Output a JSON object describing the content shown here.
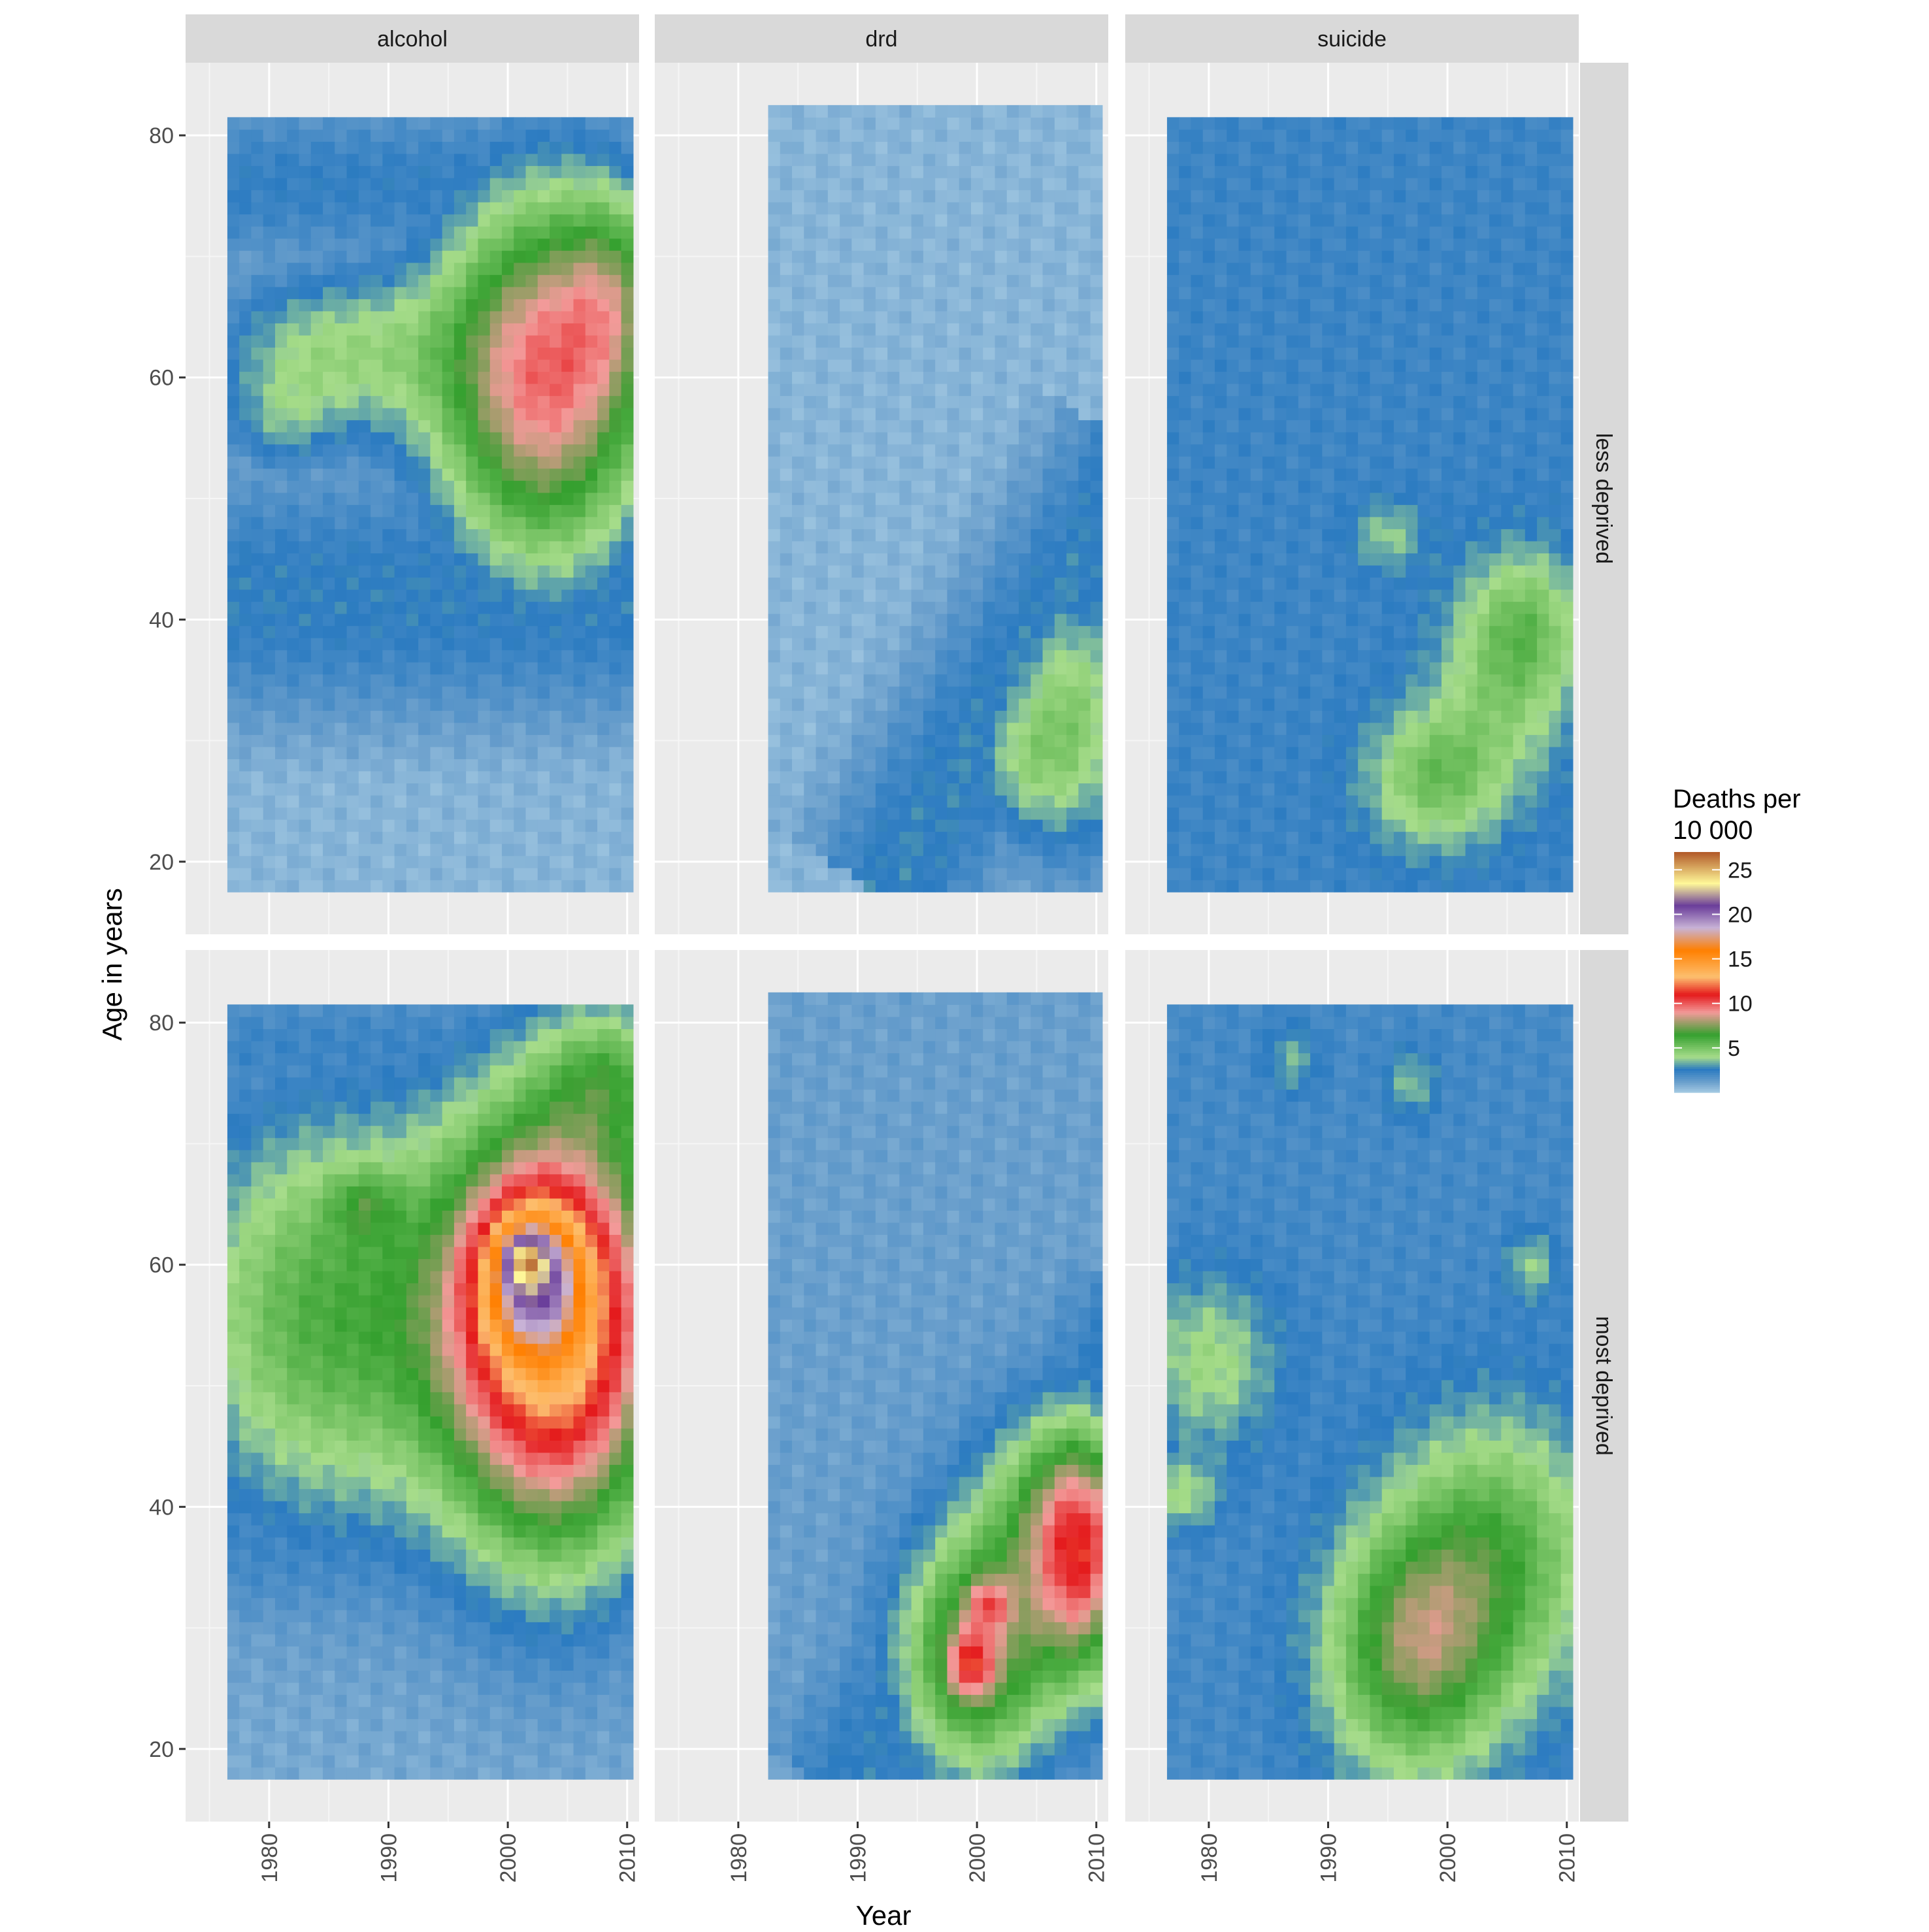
{
  "chart_data": {
    "type": "heatmap",
    "facet_columns": [
      "alcohol",
      "drd",
      "suicide"
    ],
    "facet_rows": [
      "less deprived",
      "most deprived"
    ],
    "xlabel": "Year",
    "ylabel": "Age in years",
    "x_ticks": [
      "1980",
      "1990",
      "2000",
      "2010"
    ],
    "y_ticks": [
      "20",
      "40",
      "60",
      "80"
    ],
    "xlim": [
      1973,
      2011
    ],
    "ylim": [
      14,
      86
    ],
    "legend": {
      "title_line1": "Deaths per",
      "title_line2": "10 000",
      "placement": "right",
      "ticks": [
        "5",
        "10",
        "15",
        "20",
        "25"
      ],
      "tick_values": [
        5,
        10,
        15,
        20,
        25
      ],
      "range": [
        0,
        27
      ],
      "colors": [
        "#6a9fcc",
        "#2b7bc1",
        "#a6dc8a",
        "#35a02f",
        "#f39a99",
        "#e41a1c",
        "#fdbf6f",
        "#ff7f00",
        "#c8b3d6",
        "#6a3d9a",
        "#fff899",
        "#b15928"
      ]
    },
    "panels": [
      {
        "col": "alcohol",
        "row": "less deprived",
        "x_range": [
          1976.5,
          2010.5
        ],
        "y_range": [
          17.5,
          81.5
        ],
        "base_value": 0.6,
        "blobs": [
          {
            "x": 2003,
            "y": 60,
            "sx": 6.5,
            "sy": 11,
            "amp": 9
          },
          {
            "x": 2009,
            "y": 67,
            "sx": 3,
            "sy": 6,
            "amp": 3
          },
          {
            "x": 1985,
            "y": 62,
            "sx": 7,
            "sy": 5,
            "amp": 3.5
          },
          {
            "x": 1981,
            "y": 56,
            "sx": 3,
            "sy": 3,
            "amp": 1.5
          }
        ],
        "dark_bands": [
          {
            "y": 42,
            "sy": 9,
            "x0": 1976,
            "amp": 2.6
          },
          {
            "y": 76,
            "sy": 6,
            "x0": 1976,
            "amp": 2.4
          }
        ]
      },
      {
        "col": "drd",
        "row": "less deprived",
        "x_range": [
          1982.5,
          2010.5
        ],
        "y_range": [
          17.5,
          82.5
        ],
        "base_value": 0.6,
        "blobs": [
          {
            "x": 2008,
            "y": 32,
            "sx": 4,
            "sy": 8,
            "amp": 4
          },
          {
            "x": 2003,
            "y": 28,
            "sx": 3,
            "sy": 4,
            "amp": 1.8
          }
        ],
        "dark_bands": [
          {
            "diag": true,
            "x1": 1994,
            "y1": 20,
            "x2": 2011,
            "y2": 48,
            "width": 6,
            "amp": 2.4
          }
        ]
      },
      {
        "col": "suicide",
        "row": "less deprived",
        "x_range": [
          1976.5,
          2010.5
        ],
        "y_range": [
          17.5,
          81.5
        ],
        "base_value": 2.2,
        "blobs": [
          {
            "x": 1999,
            "y": 27,
            "sx": 4,
            "sy": 4,
            "amp": 3
          },
          {
            "x": 2005,
            "y": 36,
            "sx": 4,
            "sy": 6,
            "amp": 2.4
          },
          {
            "x": 1995,
            "y": 47,
            "sx": 2,
            "sy": 2,
            "amp": 1.6
          },
          {
            "x": 2007,
            "y": 40,
            "sx": 3,
            "sy": 4,
            "amp": 1.6
          }
        ],
        "dark_bands": []
      },
      {
        "col": "alcohol",
        "row": "most deprived",
        "x_range": [
          1976.5,
          2010.5
        ],
        "y_range": [
          17.5,
          81.5
        ],
        "base_value": 0.9,
        "blobs": [
          {
            "x": 2004,
            "y": 55,
            "sx": 6.5,
            "sy": 12.5,
            "amp": 13
          },
          {
            "x": 2002,
            "y": 59,
            "sx": 2.8,
            "sy": 4,
            "amp": 8
          },
          {
            "x": 2001.5,
            "y": 60.5,
            "sx": 1.2,
            "sy": 1.4,
            "amp": 6
          },
          {
            "x": 1985,
            "y": 56,
            "sx": 9,
            "sy": 12,
            "amp": 5
          },
          {
            "x": 1988,
            "y": 65,
            "sx": 2,
            "sy": 2,
            "amp": 2
          },
          {
            "x": 2009,
            "y": 76,
            "sx": 4,
            "sy": 4,
            "amp": 3
          }
        ],
        "dark_bands": [
          {
            "y": 38,
            "sy": 8,
            "x0": 1976,
            "amp": 2.2
          },
          {
            "y": 78,
            "sy": 5,
            "x0": 1976,
            "amp": 2.2
          }
        ]
      },
      {
        "col": "drd",
        "row": "most deprived",
        "x_range": [
          1982.5,
          2010.5
        ],
        "y_range": [
          17.5,
          82.5
        ],
        "base_value": 1.2,
        "blobs": [
          {
            "x": 2000,
            "y": 28,
            "sx": 4.5,
            "sy": 7,
            "amp": 6.5
          },
          {
            "x": 1999.5,
            "y": 27,
            "sx": 1.3,
            "sy": 1.8,
            "amp": 4
          },
          {
            "x": 2001,
            "y": 32,
            "sx": 1.2,
            "sy": 1.5,
            "amp": 3
          },
          {
            "x": 2009,
            "y": 36,
            "sx": 3,
            "sy": 7,
            "amp": 8
          },
          {
            "x": 2005,
            "y": 40,
            "sx": 4,
            "sy": 6,
            "amp": 3
          }
        ],
        "dark_bands": [
          {
            "diag": true,
            "x1": 1991,
            "y1": 19,
            "x2": 2011,
            "y2": 50,
            "width": 6,
            "amp": 2
          }
        ]
      },
      {
        "col": "suicide",
        "row": "most deprived",
        "x_range": [
          1976.5,
          2010.5
        ],
        "y_range": [
          17.5,
          81.5
        ],
        "base_value": 2.0,
        "blobs": [
          {
            "x": 1997,
            "y": 28,
            "sx": 5,
            "sy": 7,
            "amp": 5
          },
          {
            "x": 2004,
            "y": 36,
            "sx": 6,
            "sy": 8,
            "amp": 3.8
          },
          {
            "x": 1980,
            "y": 52,
            "sx": 4,
            "sy": 5,
            "amp": 2.2
          },
          {
            "x": 1978,
            "y": 41,
            "sx": 2,
            "sy": 2,
            "amp": 2
          },
          {
            "x": 2007,
            "y": 60,
            "sx": 1.5,
            "sy": 2,
            "amp": 1.8
          },
          {
            "x": 1997,
            "y": 75,
            "sx": 1.5,
            "sy": 2,
            "amp": 1.6
          },
          {
            "x": 1987,
            "y": 77,
            "sx": 1.5,
            "sy": 2,
            "amp": 1.4
          }
        ],
        "dark_bands": []
      }
    ]
  }
}
